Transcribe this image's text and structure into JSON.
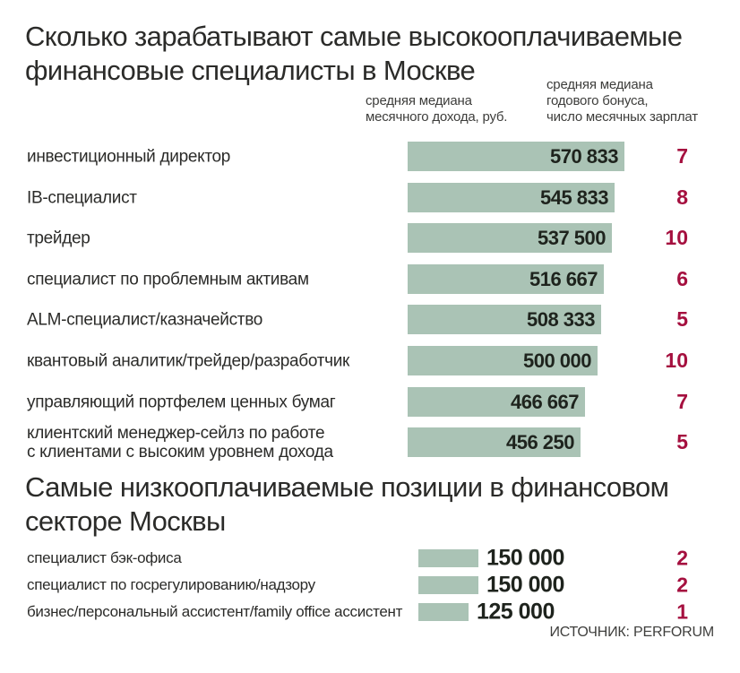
{
  "colors": {
    "bar": "#aac3b5",
    "bonus_number": "#a5103f",
    "text": "#2b2b29"
  },
  "section1": {
    "title_display": "Сколько зарабатывают самые высокооплачиваемые\nфинансовые специалисты в Москве",
    "col1_header": "средняя медиана\nмесячного дохода, руб.",
    "col2_header": "средняя медиана\nгодового бонуса,\nчисло месячных зарплат"
  },
  "section2": {
    "title_display": "Самые низкооплачиваемые позиции в финансовом\nсекторе Москвы"
  },
  "source": "ИСТОЧНИК: PERFORUM",
  "chart_data": [
    {
      "type": "bar",
      "orientation": "horizontal",
      "title": "Сколько зарабатывают самые высокооплачиваемые финансовые специалисты в Москве",
      "categories": [
        "инвестиционный директор",
        "IB-специалист",
        "трейдер",
        "специалист по проблемным активам",
        "ALM-специалист/казначейство",
        "квантовый аналитик/трейдер/разработчик",
        "управляющий портфелем ценных бумаг",
        "клиентский менеджер-сейлз по работе\nс клиентами с высоким уровнем дохода"
      ],
      "series": [
        {
          "name": "средняя медиана месячного дохода, руб.",
          "values": [
            570833,
            545833,
            537500,
            516667,
            508333,
            500000,
            466667,
            456250
          ],
          "labels": [
            "570 833",
            "545 833",
            "537 500",
            "516 667",
            "508 333",
            "500 000",
            "466 667",
            "456 250"
          ]
        },
        {
          "name": "средняя медиана годового бонуса, число месячных зарплат",
          "values": [
            7,
            8,
            10,
            6,
            5,
            10,
            7,
            5
          ]
        }
      ]
    },
    {
      "type": "bar",
      "orientation": "horizontal",
      "title": "Самые низкооплачиваемые позиции в финансовом секторе Москвы",
      "categories": [
        "специалист бэк-офиса",
        "специалист по госрегулированию/надзору",
        "бизнес/персональный ассистент/family office ассистент"
      ],
      "series": [
        {
          "name": "средняя медиана месячного дохода, руб.",
          "values": [
            150000,
            150000,
            125000
          ],
          "labels": [
            "150 000",
            "150 000",
            "125 000"
          ]
        },
        {
          "name": "средняя медиана годового бонуса, число месячных зарплат",
          "values": [
            2,
            2,
            1
          ]
        }
      ]
    }
  ]
}
